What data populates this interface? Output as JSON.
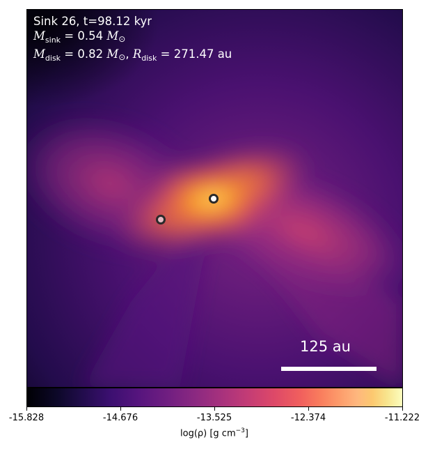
{
  "info": {
    "sink_line": "Sink 26, t=98.12 kyr",
    "m_sink_symbol": "M",
    "m_sink_sub": "sink",
    "m_sink_value": " = 0.54 ",
    "m_disk_symbol": "M",
    "m_disk_sub": "disk",
    "m_disk_value": " = 0.82 ",
    "r_disk_symbol": "R",
    "r_disk_sub": "disk",
    "r_disk_value": " = 271.47 au",
    "solar_symbol": "M",
    "solar_sub": "⊙",
    "separator": ", "
  },
  "scale_bar": {
    "label": "125 au"
  },
  "colorbar": {
    "ticks": [
      "-15.828",
      "-14.676",
      "-13.525",
      "-12.374",
      "-11.222"
    ],
    "label_main": "log(ρ) [g cm",
    "label_exp": "−3",
    "label_end": "]",
    "colormap": "inferno"
  },
  "markers": [
    {
      "name": "primary-sink",
      "fill": "#ffffff"
    },
    {
      "name": "secondary-sink",
      "fill": "#e6b8c2"
    }
  ]
}
